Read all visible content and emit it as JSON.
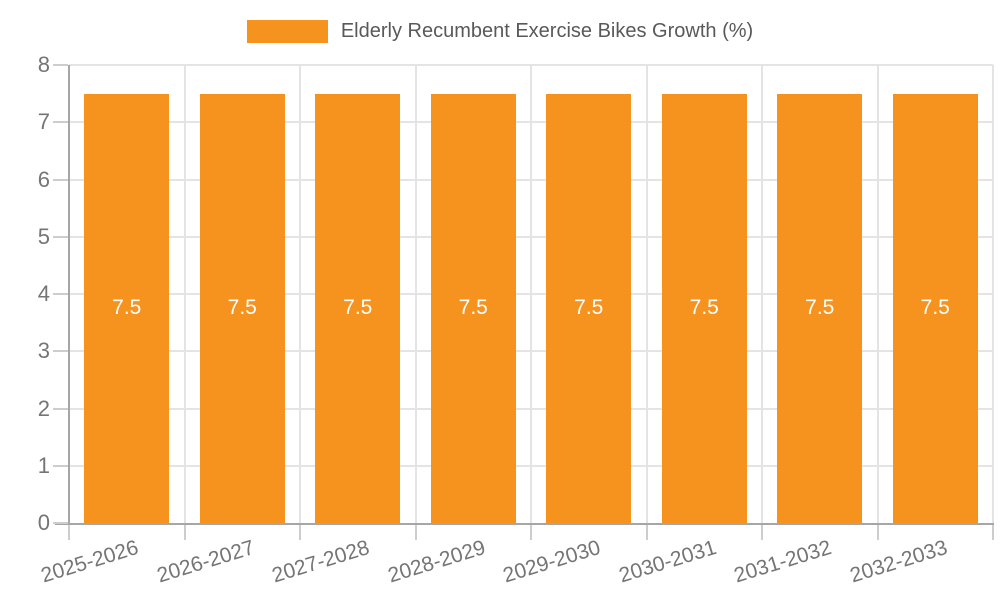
{
  "chart_data": {
    "type": "bar",
    "title": "Elderly Recumbent Exercise Bikes Growth (%)",
    "categories": [
      "2025-2026",
      "2026-2027",
      "2027-2028",
      "2028-2029",
      "2029-2030",
      "2030-2031",
      "2031-2032",
      "2032-2033"
    ],
    "values": [
      7.5,
      7.5,
      7.5,
      7.5,
      7.5,
      7.5,
      7.5,
      7.5
    ],
    "bar_labels": [
      "7.5",
      "7.5",
      "7.5",
      "7.5",
      "7.5",
      "7.5",
      "7.5",
      "7.5"
    ],
    "xlabel": "",
    "ylabel": "",
    "ylim": [
      0,
      8
    ],
    "yticks": [
      0,
      1,
      2,
      3,
      4,
      5,
      6,
      7,
      8
    ],
    "grid": true,
    "legend_position": "top-center",
    "colors": {
      "bar": "#F6921E",
      "grid": "#E4E4E4",
      "axis": "#A6A6A6",
      "tick_mark": "#CDCDCD",
      "tick_text": "#757575",
      "legend_text": "#595959",
      "bar_label": "#FFFFFF",
      "background": "#FFFFFF"
    }
  }
}
